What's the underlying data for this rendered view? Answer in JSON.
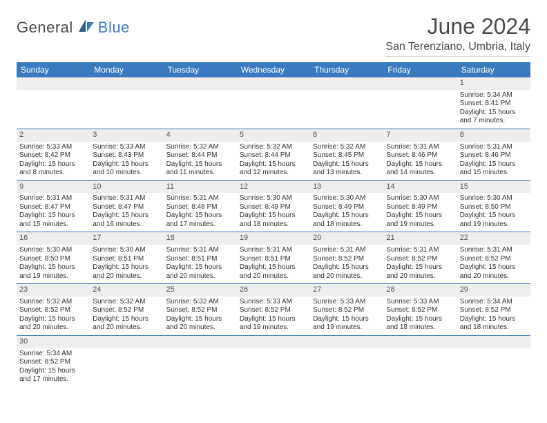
{
  "logo": {
    "text_general": "General",
    "text_blue": "Blue"
  },
  "title": "June 2024",
  "location": "San Terenziano, Umbria, Italy",
  "colors": {
    "header_bg": "#3a7bbf",
    "header_text": "#ffffff",
    "day_strip_bg": "#eeeeee",
    "row_border": "#3a7bbf",
    "body_text": "#333333",
    "title_text": "#4a4a4a"
  },
  "weekdays": [
    "Sunday",
    "Monday",
    "Tuesday",
    "Wednesday",
    "Thursday",
    "Friday",
    "Saturday"
  ],
  "weeks": [
    [
      {
        "day": "",
        "lines": []
      },
      {
        "day": "",
        "lines": []
      },
      {
        "day": "",
        "lines": []
      },
      {
        "day": "",
        "lines": []
      },
      {
        "day": "",
        "lines": []
      },
      {
        "day": "",
        "lines": []
      },
      {
        "day": "1",
        "lines": [
          "Sunrise: 5:34 AM",
          "Sunset: 8:41 PM",
          "Daylight: 15 hours",
          "and 7 minutes."
        ]
      }
    ],
    [
      {
        "day": "2",
        "lines": [
          "Sunrise: 5:33 AM",
          "Sunset: 8:42 PM",
          "Daylight: 15 hours",
          "and 8 minutes."
        ]
      },
      {
        "day": "3",
        "lines": [
          "Sunrise: 5:33 AM",
          "Sunset: 8:43 PM",
          "Daylight: 15 hours",
          "and 10 minutes."
        ]
      },
      {
        "day": "4",
        "lines": [
          "Sunrise: 5:32 AM",
          "Sunset: 8:44 PM",
          "Daylight: 15 hours",
          "and 11 minutes."
        ]
      },
      {
        "day": "5",
        "lines": [
          "Sunrise: 5:32 AM",
          "Sunset: 8:44 PM",
          "Daylight: 15 hours",
          "and 12 minutes."
        ]
      },
      {
        "day": "6",
        "lines": [
          "Sunrise: 5:32 AM",
          "Sunset: 8:45 PM",
          "Daylight: 15 hours",
          "and 13 minutes."
        ]
      },
      {
        "day": "7",
        "lines": [
          "Sunrise: 5:31 AM",
          "Sunset: 8:46 PM",
          "Daylight: 15 hours",
          "and 14 minutes."
        ]
      },
      {
        "day": "8",
        "lines": [
          "Sunrise: 5:31 AM",
          "Sunset: 8:46 PM",
          "Daylight: 15 hours",
          "and 15 minutes."
        ]
      }
    ],
    [
      {
        "day": "9",
        "lines": [
          "Sunrise: 5:31 AM",
          "Sunset: 8:47 PM",
          "Daylight: 15 hours",
          "and 15 minutes."
        ]
      },
      {
        "day": "10",
        "lines": [
          "Sunrise: 5:31 AM",
          "Sunset: 8:47 PM",
          "Daylight: 15 hours",
          "and 16 minutes."
        ]
      },
      {
        "day": "11",
        "lines": [
          "Sunrise: 5:31 AM",
          "Sunset: 8:48 PM",
          "Daylight: 15 hours",
          "and 17 minutes."
        ]
      },
      {
        "day": "12",
        "lines": [
          "Sunrise: 5:30 AM",
          "Sunset: 8:49 PM",
          "Daylight: 15 hours",
          "and 18 minutes."
        ]
      },
      {
        "day": "13",
        "lines": [
          "Sunrise: 5:30 AM",
          "Sunset: 8:49 PM",
          "Daylight: 15 hours",
          "and 18 minutes."
        ]
      },
      {
        "day": "14",
        "lines": [
          "Sunrise: 5:30 AM",
          "Sunset: 8:49 PM",
          "Daylight: 15 hours",
          "and 19 minutes."
        ]
      },
      {
        "day": "15",
        "lines": [
          "Sunrise: 5:30 AM",
          "Sunset: 8:50 PM",
          "Daylight: 15 hours",
          "and 19 minutes."
        ]
      }
    ],
    [
      {
        "day": "16",
        "lines": [
          "Sunrise: 5:30 AM",
          "Sunset: 8:50 PM",
          "Daylight: 15 hours",
          "and 19 minutes."
        ]
      },
      {
        "day": "17",
        "lines": [
          "Sunrise: 5:30 AM",
          "Sunset: 8:51 PM",
          "Daylight: 15 hours",
          "and 20 minutes."
        ]
      },
      {
        "day": "18",
        "lines": [
          "Sunrise: 5:31 AM",
          "Sunset: 8:51 PM",
          "Daylight: 15 hours",
          "and 20 minutes."
        ]
      },
      {
        "day": "19",
        "lines": [
          "Sunrise: 5:31 AM",
          "Sunset: 8:51 PM",
          "Daylight: 15 hours",
          "and 20 minutes."
        ]
      },
      {
        "day": "20",
        "lines": [
          "Sunrise: 5:31 AM",
          "Sunset: 8:52 PM",
          "Daylight: 15 hours",
          "and 20 minutes."
        ]
      },
      {
        "day": "21",
        "lines": [
          "Sunrise: 5:31 AM",
          "Sunset: 8:52 PM",
          "Daylight: 15 hours",
          "and 20 minutes."
        ]
      },
      {
        "day": "22",
        "lines": [
          "Sunrise: 5:31 AM",
          "Sunset: 8:52 PM",
          "Daylight: 15 hours",
          "and 20 minutes."
        ]
      }
    ],
    [
      {
        "day": "23",
        "lines": [
          "Sunrise: 5:32 AM",
          "Sunset: 8:52 PM",
          "Daylight: 15 hours",
          "and 20 minutes."
        ]
      },
      {
        "day": "24",
        "lines": [
          "Sunrise: 5:32 AM",
          "Sunset: 8:52 PM",
          "Daylight: 15 hours",
          "and 20 minutes."
        ]
      },
      {
        "day": "25",
        "lines": [
          "Sunrise: 5:32 AM",
          "Sunset: 8:52 PM",
          "Daylight: 15 hours",
          "and 20 minutes."
        ]
      },
      {
        "day": "26",
        "lines": [
          "Sunrise: 5:33 AM",
          "Sunset: 8:52 PM",
          "Daylight: 15 hours",
          "and 19 minutes."
        ]
      },
      {
        "day": "27",
        "lines": [
          "Sunrise: 5:33 AM",
          "Sunset: 8:52 PM",
          "Daylight: 15 hours",
          "and 19 minutes."
        ]
      },
      {
        "day": "28",
        "lines": [
          "Sunrise: 5:33 AM",
          "Sunset: 8:52 PM",
          "Daylight: 15 hours",
          "and 18 minutes."
        ]
      },
      {
        "day": "29",
        "lines": [
          "Sunrise: 5:34 AM",
          "Sunset: 8:52 PM",
          "Daylight: 15 hours",
          "and 18 minutes."
        ]
      }
    ],
    [
      {
        "day": "30",
        "lines": [
          "Sunrise: 5:34 AM",
          "Sunset: 8:52 PM",
          "Daylight: 15 hours",
          "and 17 minutes."
        ]
      },
      {
        "day": "",
        "lines": []
      },
      {
        "day": "",
        "lines": []
      },
      {
        "day": "",
        "lines": []
      },
      {
        "day": "",
        "lines": []
      },
      {
        "day": "",
        "lines": []
      },
      {
        "day": "",
        "lines": []
      }
    ]
  ]
}
